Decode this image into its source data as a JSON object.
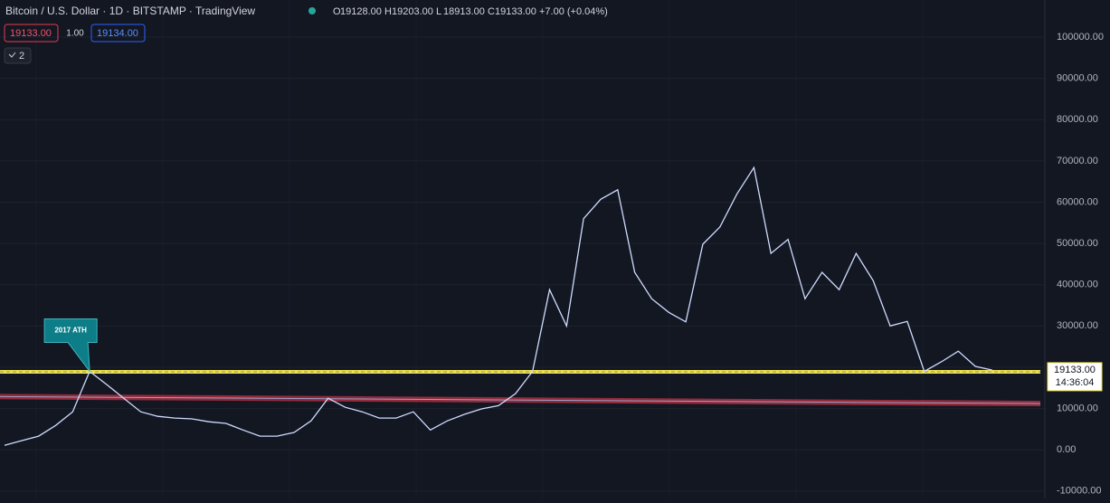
{
  "header": {
    "title": "Bitcoin / U.S. Dollar · 1D · BITSTAMP · TradingView",
    "ohlc": [
      {
        "label": "O",
        "value": "19128.00"
      },
      {
        "label": "H",
        "value": "19203.00"
      },
      {
        "label": "L",
        "value": "18913.00"
      },
      {
        "label": "C",
        "value": "19133.00"
      }
    ],
    "change": "+7.00 (+0.04%)",
    "sell": "19133.00",
    "spread": "1.00",
    "buy": "19134.00",
    "indicators": "2"
  },
  "chart_data": {
    "type": "line",
    "categories": [
      null,
      null,
      null,
      null,
      null,
      null,
      null,
      null,
      null,
      null,
      null,
      null,
      null,
      null,
      null,
      null,
      null,
      null,
      null,
      null,
      null,
      null,
      null,
      null,
      null,
      null,
      null,
      null,
      null,
      null,
      null,
      null,
      null,
      null,
      null,
      null,
      null,
      null,
      null,
      null,
      null,
      null,
      null,
      null,
      null,
      null,
      null,
      null,
      null,
      null,
      null,
      null,
      null,
      null,
      null,
      null,
      null,
      null,
      null
    ],
    "series": [
      {
        "color": "#cfdcff",
        "values": [
          1100,
          2200,
          3300,
          5900,
          9200,
          19000,
          15800,
          12500,
          9200,
          8100,
          7700,
          7500,
          6800,
          6400,
          4800,
          3300,
          3300,
          4200,
          7000,
          12500,
          10300,
          9200,
          7700,
          7700,
          9200,
          4800,
          7000,
          8600,
          9900,
          10700,
          13600,
          19000,
          38800,
          30000,
          56000,
          60700,
          63000,
          43000,
          36600,
          33300,
          31000,
          49800,
          54000,
          62000,
          68400,
          47600,
          51000,
          36600,
          43000,
          38800,
          47600,
          41000,
          30000,
          31100,
          19000,
          21300,
          23900,
          20200,
          19300
        ]
      }
    ],
    "ylim": [
      -11800,
      109000
    ],
    "yticks": [
      {
        "value": -10000,
        "label": "-10000.00"
      },
      {
        "value": 0,
        "label": "0.00"
      },
      {
        "value": 10000,
        "label": "10000.00"
      },
      {
        "value": 20000,
        "label": "20000.00"
      },
      {
        "value": 30000,
        "label": "30000.00"
      },
      {
        "value": 40000,
        "label": "40000.00"
      },
      {
        "value": 50000,
        "label": "50000.00"
      },
      {
        "value": 60000,
        "label": "60000.00"
      },
      {
        "value": 70000,
        "label": "70000.00"
      },
      {
        "value": 80000,
        "label": "80000.00"
      },
      {
        "value": 90000,
        "label": "90000.00"
      },
      {
        "value": 100000,
        "label": "100000.00"
      }
    ],
    "grid": true,
    "hline": {
      "value": 18900,
      "color": "#f0e24a"
    },
    "trendline": {
      "values": [
        12900,
        11200
      ],
      "color": "#e8384f"
    },
    "annotation": {
      "text": "2017 ATH",
      "index": 5
    },
    "price_label": {
      "value": 19133,
      "label": "19133.00",
      "countdown": "14:36:04"
    }
  }
}
